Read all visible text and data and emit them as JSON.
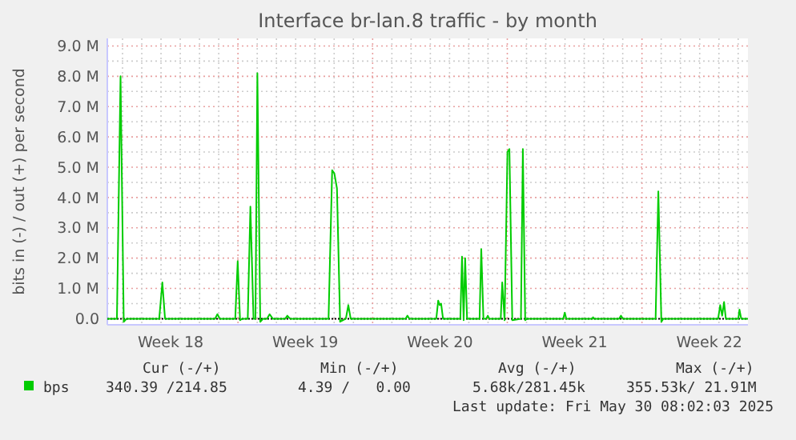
{
  "chart_data": {
    "type": "line",
    "title": "Interface br-lan.8 traffic - by month",
    "ylabel": "bits in (-) / out (+) per second",
    "xlim": [
      "2025-04-28T05:00",
      "2025-05-31T12:12"
    ],
    "ylim": [
      -0.2,
      9.25
    ],
    "xticks": [
      {
        "value": "2025-05-01T12:00",
        "label": "Week 18"
      },
      {
        "value": "2025-05-08T12:00",
        "label": "Week 19"
      },
      {
        "value": "2025-05-15T12:00",
        "label": "Week 20"
      },
      {
        "value": "2025-05-22T12:00",
        "label": "Week 21"
      },
      {
        "value": "2025-05-29T12:00",
        "label": "Week 22"
      },
      {
        "value": "2025-04-29T00:00",
        "label": null
      },
      {
        "value": "2025-04-30T00:00",
        "label": null
      },
      {
        "value": "2025-05-01T00:00",
        "label": null
      },
      {
        "value": "2025-05-02T00:00",
        "label": null
      },
      {
        "value": "2025-05-03T00:00",
        "label": null
      },
      {
        "value": "2025-05-04T00:00",
        "label": null
      },
      {
        "value": "2025-05-05T00:00",
        "label": null
      },
      {
        "value": "2025-05-06T00:00",
        "label": null
      },
      {
        "value": "2025-05-07T00:00",
        "label": null
      },
      {
        "value": "2025-05-08T00:00",
        "label": null
      },
      {
        "value": "2025-05-09T00:00",
        "label": null
      },
      {
        "value": "2025-05-10T00:00",
        "label": null
      },
      {
        "value": "2025-05-11T00:00",
        "label": null
      },
      {
        "value": "2025-05-12T00:00",
        "label": null
      },
      {
        "value": "2025-05-13T00:00",
        "label": null
      },
      {
        "value": "2025-05-14T00:00",
        "label": null
      },
      {
        "value": "2025-05-15T00:00",
        "label": null
      },
      {
        "value": "2025-05-16T00:00",
        "label": null
      },
      {
        "value": "2025-05-17T00:00",
        "label": null
      },
      {
        "value": "2025-05-18T00:00",
        "label": null
      },
      {
        "value": "2025-05-19T00:00",
        "label": null
      },
      {
        "value": "2025-05-20T00:00",
        "label": null
      },
      {
        "value": "2025-05-21T00:00",
        "label": null
      },
      {
        "value": "2025-05-22T00:00",
        "label": null
      },
      {
        "value": "2025-05-23T00:00",
        "label": null
      },
      {
        "value": "2025-05-24T00:00",
        "label": null
      },
      {
        "value": "2025-05-25T00:00",
        "label": null
      },
      {
        "value": "2025-05-26T00:00",
        "label": null
      },
      {
        "value": "2025-05-27T00:00",
        "label": null
      },
      {
        "value": "2025-05-28T00:00",
        "label": null
      },
      {
        "value": "2025-05-29T00:00",
        "label": null
      },
      {
        "value": "2025-05-30T00:00",
        "label": null
      },
      {
        "value": "2025-05-31T00:00",
        "label": null
      }
    ],
    "yticks": [
      {
        "value": 0,
        "label": "0.0"
      },
      {
        "value": 1,
        "label": "1.0 M"
      },
      {
        "value": 2,
        "label": "2.0 M"
      },
      {
        "value": 3,
        "label": "3.0 M"
      },
      {
        "value": 4,
        "label": "4.0 M"
      },
      {
        "value": 5,
        "label": "5.0 M"
      },
      {
        "value": 6,
        "label": "6.0 M"
      },
      {
        "value": 7,
        "label": "7.0 M"
      },
      {
        "value": 8,
        "label": "8.0 M"
      },
      {
        "value": 9,
        "label": "9.0 M"
      },
      {
        "value": 0.5,
        "label": null
      },
      {
        "value": 1.5,
        "label": null
      },
      {
        "value": 2.5,
        "label": null
      },
      {
        "value": 3.5,
        "label": null
      },
      {
        "value": 4.5,
        "label": null
      },
      {
        "value": 5.5,
        "label": null
      },
      {
        "value": 6.5,
        "label": null
      },
      {
        "value": 7.5,
        "label": null
      },
      {
        "value": 8.5,
        "label": null
      }
    ],
    "ref_lines": [
      {
        "axis": "y",
        "value": 0,
        "color": "#000000",
        "line_style": "dotted"
      }
    ],
    "grid": true,
    "legend": "bottom",
    "marker": "none",
    "line_style": "solid",
    "series": [
      {
        "name": "bps",
        "color": "#00cc00",
        "x": [
          "2025-04-28T05:00",
          "2025-04-28T17:00",
          "2025-04-28T21:30",
          "2025-04-29T01:30",
          "2025-04-29T05:00",
          "2025-04-30T21:45",
          "2025-05-01T01:40",
          "2025-05-01T05:00",
          "2025-05-03T19:24",
          "2025-05-03T22:20",
          "2025-05-04T01:24",
          "2025-05-04T20:36",
          "2025-05-04T23:40",
          "2025-05-05T02:36",
          "2025-05-05T05:00",
          "2025-05-05T12:12",
          "2025-05-05T15:30",
          "2025-05-05T19:24",
          "2025-05-05T21:48",
          "2025-05-06T00:12",
          "2025-05-06T03:48",
          "2025-05-06T07:24",
          "2025-05-06T12:12",
          "2025-05-06T15:30",
          "2025-05-06T19:24",
          "2025-05-07T11:00",
          "2025-05-07T13:36",
          "2025-05-07T17:00",
          "2025-05-09T17:00",
          "2025-05-09T21:30",
          "2025-05-10T00:12",
          "2025-05-10T03:30",
          "2025-05-10T07:24",
          "2025-05-10T14:36",
          "2025-05-10T17:40",
          "2025-05-10T20:36",
          "2025-05-13T17:00",
          "2025-05-13T19:24",
          "2025-05-13T21:48",
          "2025-05-15T07:24",
          "2025-05-15T09:48",
          "2025-05-15T11:40",
          "2025-05-15T13:24",
          "2025-05-15T15:48",
          "2025-05-16T13:24",
          "2025-05-16T15:30",
          "2025-05-16T17:30",
          "2025-05-16T19:24",
          "2025-05-16T21:48",
          "2025-05-17T13:24",
          "2025-05-17T15:30",
          "2025-05-17T18:12",
          "2025-05-17T21:48",
          "2025-05-17T23:40",
          "2025-05-18T01:24",
          "2025-05-18T15:48",
          "2025-05-18T17:40",
          "2025-05-18T20:36",
          "2025-05-19T00:12",
          "2025-05-19T02:36",
          "2025-05-19T06:12",
          "2025-05-19T17:00",
          "2025-05-19T19:24",
          "2025-05-19T22:20",
          "2025-05-20T00:12",
          "2025-05-21T21:48",
          "2025-05-21T23:40",
          "2025-05-22T01:36",
          "2025-05-23T09:48",
          "2025-05-23T11:00",
          "2025-05-23T12:12",
          "2025-05-24T19:24",
          "2025-05-24T21:48",
          "2025-05-25T00:12",
          "2025-05-26T17:00",
          "2025-05-26T20:24",
          "2025-05-27T00:12",
          "2025-05-27T02:36",
          "2025-05-29T23:00",
          "2025-05-30T01:36",
          "2025-05-30T04:00",
          "2025-05-30T06:24",
          "2025-05-30T08:36",
          "2025-05-31T00:12",
          "2025-05-31T01:36",
          "2025-05-31T03:48",
          "2025-05-31T12:12"
        ],
        "values": [
          0,
          0,
          8.0,
          -0.1,
          0,
          0,
          1.2,
          0,
          0,
          0.15,
          0,
          0,
          1.9,
          -0.05,
          0,
          0,
          3.7,
          0,
          0,
          8.1,
          -0.1,
          0,
          0,
          0.15,
          0,
          0,
          0.1,
          0,
          0,
          4.9,
          4.8,
          4.3,
          -0.1,
          0,
          0.45,
          0,
          0,
          0.1,
          0,
          0,
          0.6,
          0.45,
          0.5,
          0,
          0,
          2.05,
          -0.05,
          2.0,
          0,
          0,
          2.3,
          0,
          0,
          0.1,
          0,
          0,
          1.2,
          -0.05,
          5.5,
          5.6,
          -0.05,
          0,
          5.6,
          -0.05,
          0,
          0,
          0.2,
          0,
          0,
          0.05,
          0,
          0,
          0.1,
          0,
          0,
          4.2,
          -0.1,
          0,
          0,
          0.45,
          0.1,
          0.55,
          0,
          0,
          0.3,
          0,
          0
        ]
      }
    ],
    "annotations": [
      "Cur (-/+)",
      "Min (-/+)",
      "Avg (-/+)",
      "Max (-/+)",
      "340.39 /214.85",
      "4.39 /   0.00",
      "5.68k/281.45k",
      "355.53k/ 21.91M",
      "Last update: Fri May 30 08:02:03 2025"
    ]
  }
}
